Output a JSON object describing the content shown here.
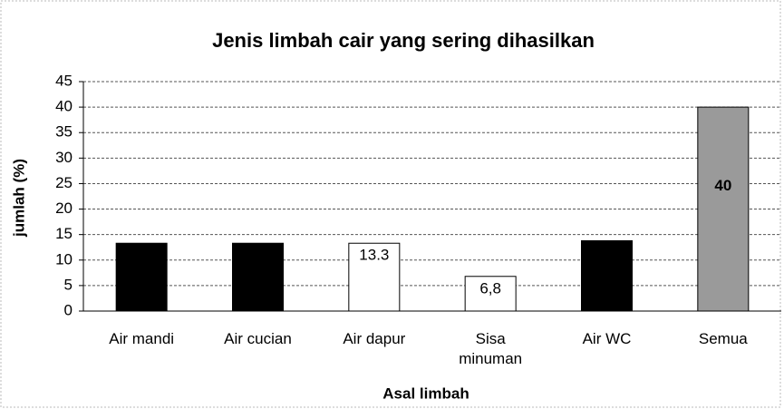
{
  "chart_data": {
    "type": "bar",
    "title": "Jenis limbah cair yang sering dihasilkan",
    "x_label": "Asal limbah",
    "y_label": "jumlah (%)",
    "categories": [
      "Air mandi",
      "Air cucian",
      "Air dapur",
      "Sisa minuman",
      "Air WC",
      "Semua"
    ],
    "values": [
      13.3,
      13.3,
      13.3,
      6.8,
      13.8,
      40
    ],
    "value_labels": [
      null,
      null,
      "13.3",
      "6,8",
      null,
      "40"
    ],
    "colors": [
      "#000000",
      "#000000",
      "#ffffff",
      "#ffffff",
      "#000000",
      "#9a9a9a"
    ],
    "ylim": [
      0,
      45
    ],
    "yticks": [
      0,
      5,
      10,
      15,
      20,
      25,
      30,
      35,
      40,
      45
    ],
    "grid": true
  }
}
